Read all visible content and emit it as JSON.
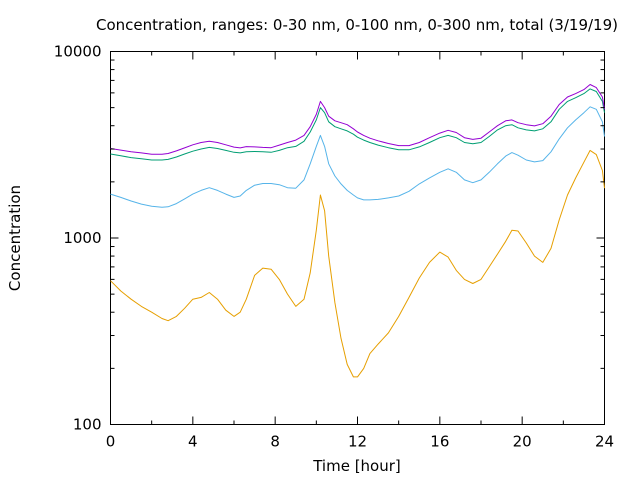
{
  "chart_data": {
    "type": "line",
    "title": "Concentration, ranges: 0-30 nm, 0-100 nm, 0-300 nm, total (3/19/19)",
    "xlabel": "Time [hour]",
    "ylabel": "Concentration",
    "xlim": [
      0,
      24
    ],
    "ylim": [
      100,
      10000
    ],
    "yscale": "log",
    "grid": false,
    "x_ticks": [
      "0",
      "4",
      "8",
      "12",
      "16",
      "20",
      "24"
    ],
    "y_ticks": [
      "100",
      "1000",
      "10000"
    ],
    "series": [
      {
        "color": "#e69f00",
        "x": [
          0,
          0.5,
          1,
          1.5,
          2,
          2.5,
          2.8,
          3.2,
          3.6,
          4,
          4.4,
          4.8,
          5.2,
          5.6,
          6,
          6.3,
          6.6,
          7,
          7.4,
          7.8,
          8.2,
          8.6,
          9,
          9.4,
          9.7,
          10.0,
          10.2,
          10.4,
          10.6,
          10.9,
          11.2,
          11.5,
          11.8,
          12.0,
          12.3,
          12.6,
          13,
          13.5,
          14,
          14.5,
          15,
          15.5,
          16,
          16.4,
          16.8,
          17.2,
          17.6,
          18,
          18.4,
          18.8,
          19.2,
          19.5,
          19.8,
          20.2,
          20.6,
          21.0,
          21.4,
          21.8,
          22.2,
          22.6,
          23.0,
          23.3,
          23.6,
          23.9,
          24
        ],
        "y": [
          590,
          520,
          470,
          430,
          400,
          370,
          360,
          380,
          420,
          470,
          480,
          510,
          470,
          410,
          380,
          400,
          470,
          630,
          690,
          680,
          600,
          500,
          430,
          470,
          650,
          1100,
          1700,
          1400,
          800,
          450,
          290,
          210,
          180,
          180,
          200,
          240,
          270,
          310,
          380,
          480,
          610,
          740,
          840,
          790,
          670,
          600,
          570,
          600,
          700,
          820,
          960,
          1100,
          1090,
          940,
          800,
          740,
          880,
          1250,
          1700,
          2100,
          2550,
          2950,
          2800,
          2300,
          1850
        ]
      },
      {
        "color": "#56b4e9",
        "x": [
          0,
          0.5,
          1,
          1.5,
          2,
          2.5,
          2.8,
          3.2,
          3.6,
          4,
          4.4,
          4.8,
          5.2,
          5.6,
          6,
          6.3,
          6.6,
          7,
          7.4,
          7.8,
          8.2,
          8.6,
          9,
          9.4,
          9.7,
          10.0,
          10.2,
          10.4,
          10.6,
          10.9,
          11.2,
          11.5,
          11.8,
          12.0,
          12.3,
          12.6,
          13,
          13.5,
          14,
          14.5,
          15,
          15.5,
          16,
          16.4,
          16.8,
          17.2,
          17.6,
          18,
          18.4,
          18.8,
          19.2,
          19.5,
          19.8,
          20.2,
          20.6,
          21.0,
          21.4,
          21.8,
          22.2,
          22.6,
          23.0,
          23.3,
          23.6,
          23.9,
          24
        ],
        "y": [
          1720,
          1650,
          1580,
          1520,
          1480,
          1460,
          1470,
          1530,
          1620,
          1720,
          1800,
          1860,
          1800,
          1720,
          1650,
          1680,
          1800,
          1920,
          1960,
          1960,
          1930,
          1860,
          1850,
          2050,
          2500,
          3100,
          3550,
          3100,
          2500,
          2150,
          1950,
          1800,
          1700,
          1640,
          1600,
          1600,
          1610,
          1640,
          1680,
          1780,
          1950,
          2100,
          2250,
          2350,
          2250,
          2050,
          1980,
          2050,
          2250,
          2500,
          2750,
          2870,
          2780,
          2620,
          2560,
          2600,
          2900,
          3400,
          3900,
          4300,
          4700,
          5050,
          4900,
          4200,
          3500
        ]
      },
      {
        "color": "#009e73",
        "x": [
          0,
          0.5,
          1,
          1.5,
          2,
          2.5,
          2.8,
          3.2,
          3.6,
          4,
          4.4,
          4.8,
          5.2,
          5.6,
          6,
          6.3,
          6.6,
          7,
          7.4,
          7.8,
          8.2,
          8.6,
          9,
          9.4,
          9.7,
          10.0,
          10.2,
          10.4,
          10.6,
          10.9,
          11.2,
          11.5,
          11.8,
          12.0,
          12.3,
          12.6,
          13,
          13.5,
          14,
          14.5,
          15,
          15.5,
          16,
          16.4,
          16.8,
          17.2,
          17.6,
          18,
          18.4,
          18.8,
          19.2,
          19.5,
          19.8,
          20.2,
          20.6,
          21.0,
          21.4,
          21.8,
          22.2,
          22.6,
          23.0,
          23.3,
          23.6,
          23.9,
          24
        ],
        "y": [
          2820,
          2760,
          2700,
          2660,
          2620,
          2620,
          2640,
          2720,
          2820,
          2920,
          3000,
          3060,
          3020,
          2950,
          2880,
          2860,
          2900,
          2910,
          2900,
          2880,
          2950,
          3050,
          3100,
          3300,
          3700,
          4300,
          5000,
          4700,
          4200,
          3950,
          3850,
          3750,
          3600,
          3470,
          3350,
          3250,
          3150,
          3050,
          2970,
          2970,
          3080,
          3250,
          3450,
          3550,
          3450,
          3250,
          3200,
          3250,
          3500,
          3800,
          4000,
          4050,
          3900,
          3800,
          3750,
          3850,
          4200,
          4900,
          5400,
          5650,
          5950,
          6300,
          6100,
          5400,
          4700
        ]
      },
      {
        "color": "#9400d3",
        "x": [
          0,
          0.5,
          1,
          1.5,
          2,
          2.5,
          2.8,
          3.2,
          3.6,
          4,
          4.4,
          4.8,
          5.2,
          5.6,
          6,
          6.3,
          6.6,
          7,
          7.4,
          7.8,
          8.2,
          8.6,
          9,
          9.4,
          9.7,
          10.0,
          10.2,
          10.4,
          10.6,
          10.9,
          11.2,
          11.5,
          11.8,
          12.0,
          12.3,
          12.6,
          13,
          13.5,
          14,
          14.5,
          15,
          15.5,
          16,
          16.4,
          16.8,
          17.2,
          17.6,
          18,
          18.4,
          18.8,
          19.2,
          19.5,
          19.8,
          20.2,
          20.6,
          21.0,
          21.4,
          21.8,
          22.2,
          22.6,
          23.0,
          23.3,
          23.6,
          23.9,
          24
        ],
        "y": [
          3020,
          2960,
          2900,
          2860,
          2810,
          2810,
          2840,
          2930,
          3040,
          3160,
          3250,
          3300,
          3250,
          3160,
          3070,
          3040,
          3090,
          3080,
          3060,
          3050,
          3150,
          3250,
          3350,
          3550,
          3950,
          4600,
          5400,
          5000,
          4500,
          4250,
          4150,
          4050,
          3850,
          3700,
          3550,
          3430,
          3320,
          3210,
          3130,
          3130,
          3250,
          3450,
          3650,
          3780,
          3680,
          3450,
          3380,
          3430,
          3700,
          4000,
          4250,
          4300,
          4150,
          4050,
          3990,
          4100,
          4500,
          5200,
          5700,
          5950,
          6250,
          6650,
          6400,
          5700,
          4900
        ]
      }
    ]
  }
}
